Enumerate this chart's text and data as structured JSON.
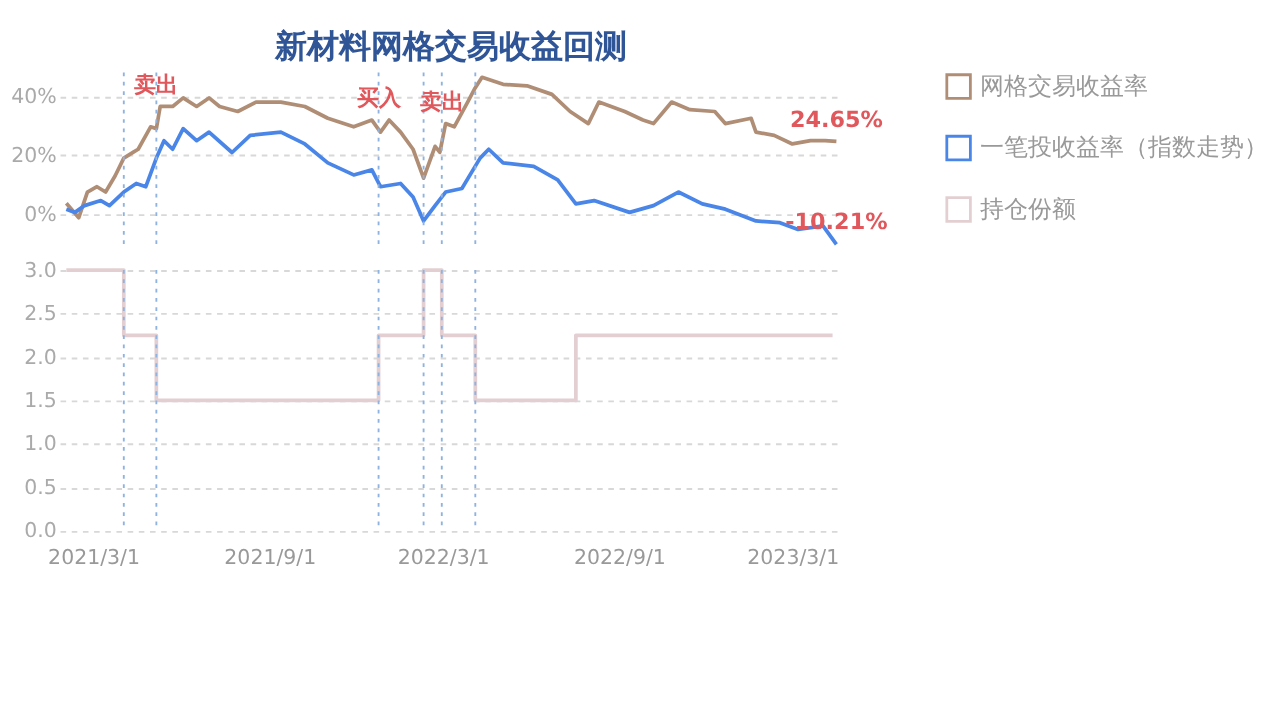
{
  "chart_data": [
    {
      "type": "line",
      "title": "新材料网格交易收益回测",
      "xlim": [
        "2021-01-25",
        "2023-04-22"
      ],
      "ylim": [
        -12,
        48
      ],
      "yticks": [
        {
          "value": 0,
          "label": "0%"
        },
        {
          "value": 20,
          "label": "20%"
        },
        {
          "value": 40,
          "label": "40%"
        }
      ],
      "grid": "y",
      "legend": "right",
      "tick_labels": "y",
      "series": [
        {
          "name": "网格交易收益率",
          "color": "#b08e76",
          "x": [
            "2021-02-01",
            "2021-02-14",
            "2021-02-23",
            "2021-03-05",
            "2021-03-14",
            "2021-03-24",
            "2021-04-02",
            "2021-04-12",
            "2021-04-17",
            "2021-04-30",
            "2021-05-06",
            "2021-05-10",
            "2021-05-23",
            "2021-06-03",
            "2021-06-17",
            "2021-06-30",
            "2021-07-11",
            "2021-07-30",
            "2021-08-18",
            "2021-09-13",
            "2021-10-08",
            "2021-11-01",
            "2021-11-28",
            "2021-12-17",
            "2021-12-26",
            "2022-01-04",
            "2022-01-16",
            "2022-01-29",
            "2022-02-09",
            "2022-02-21",
            "2022-02-26",
            "2022-03-04",
            "2022-03-13",
            "2022-03-27",
            "2022-04-03",
            "2022-04-11",
            "2022-05-03",
            "2022-05-28",
            "2022-06-23",
            "2022-07-12",
            "2022-07-31",
            "2022-08-11",
            "2022-09-07",
            "2022-09-26",
            "2022-10-07",
            "2022-10-26",
            "2022-11-14",
            "2022-12-10",
            "2022-12-21",
            "2023-01-17",
            "2023-01-22",
            "2023-02-10",
            "2023-03-01",
            "2023-03-20",
            "2023-04-04",
            "2023-04-16"
          ],
          "values": [
            3.7,
            -1.2,
            7.5,
            9.3,
            7.5,
            13,
            19,
            21,
            22,
            29.6,
            29,
            36.5,
            36.5,
            39.4,
            36.5,
            39.4,
            36.5,
            34.8,
            38,
            38,
            36.5,
            32.5,
            29.6,
            31.9,
            27.8,
            31.9,
            27.8,
            22,
            12.2,
            23,
            21,
            30.7,
            29.6,
            38,
            42.3,
            46.4,
            44,
            43.5,
            40.6,
            34.8,
            30.7,
            38,
            34.8,
            31.9,
            30.7,
            38,
            35.4,
            34.8,
            30.7,
            32.5,
            27.8,
            26.7,
            23.8,
            24.9,
            24.9,
            24.65
          ]
        },
        {
          "name": "一笔投收益率（指数走势）",
          "color": "#4a86e8",
          "x": [
            "2021-02-01",
            "2021-02-10",
            "2021-02-20",
            "2021-03-09",
            "2021-03-18",
            "2021-04-02",
            "2021-04-15",
            "2021-04-25",
            "2021-05-06",
            "2021-05-14",
            "2021-05-23",
            "2021-06-03",
            "2021-06-17",
            "2021-06-30",
            "2021-07-24",
            "2021-08-12",
            "2021-09-13",
            "2021-10-08",
            "2021-11-01",
            "2021-11-28",
            "2021-12-17",
            "2021-12-26",
            "2022-01-16",
            "2022-01-29",
            "2022-02-09",
            "2022-02-21",
            "2022-03-04",
            "2022-03-21",
            "2022-04-09",
            "2022-04-18",
            "2022-05-03",
            "2022-06-04",
            "2022-06-29",
            "2022-07-18",
            "2022-08-06",
            "2022-09-12",
            "2022-10-07",
            "2022-11-02",
            "2022-11-27",
            "2022-12-21",
            "2023-01-22",
            "2023-02-16",
            "2023-03-07",
            "2023-04-02",
            "2023-04-16"
          ],
          "values": [
            1.7,
            0.6,
            2.9,
            4.6,
            2.9,
            7.5,
            10.4,
            9.3,
            19,
            24.9,
            22,
            29,
            24.9,
            27.8,
            20.9,
            26.7,
            27.8,
            23.8,
            17.4,
            13.3,
            15,
            9.3,
            10.4,
            5.8,
            -2.3,
            2.9,
            7.5,
            8.7,
            19,
            22,
            17.4,
            16.2,
            11.6,
            3.5,
            4.6,
            0.6,
            2.9,
            7.5,
            3.5,
            1.7,
            -2.3,
            -2.9,
            -5.2,
            -4,
            -10.21
          ]
        }
      ],
      "ref_lines": [
        {
          "axis": "x",
          "value": "2021-04-02",
          "color": "#8fb3e0",
          "line_style": "dotted"
        },
        {
          "axis": "x",
          "value": "2021-05-06",
          "color": "#8fb3e0",
          "line_style": "dotted"
        },
        {
          "axis": "x",
          "value": "2021-12-24",
          "color": "#8fb3e0",
          "line_style": "dotted"
        },
        {
          "axis": "x",
          "value": "2022-02-09",
          "color": "#8fb3e0",
          "line_style": "dotted"
        },
        {
          "axis": "x",
          "value": "2022-02-28",
          "color": "#8fb3e0",
          "line_style": "dotted"
        },
        {
          "axis": "x",
          "value": "2022-04-04",
          "color": "#8fb3e0",
          "line_style": "dotted"
        }
      ],
      "annotations": [
        {
          "text": "卖出",
          "x": "2021-05-06",
          "y": 36.5
        },
        {
          "text": "买入",
          "x": "2021-12-24",
          "y": 31.9
        },
        {
          "text": "卖出",
          "x": "2022-02-28",
          "y": 30.7
        },
        {
          "text": "24.65%",
          "x": "2023-04-16",
          "y": 24.65
        },
        {
          "text": "-10.21%",
          "x": "2023-04-16",
          "y": -10.21
        }
      ]
    },
    {
      "type": "step",
      "xlim": [
        "2021-01-25",
        "2023-04-22"
      ],
      "ylim": [
        0,
        3
      ],
      "yticks": [
        {
          "value": 0,
          "label": "0.0"
        },
        {
          "value": 0.5,
          "label": "0.5"
        },
        {
          "value": 1,
          "label": "1.0"
        },
        {
          "value": 1.5,
          "label": "1.5"
        },
        {
          "value": 2,
          "label": "2.0"
        },
        {
          "value": 2.5,
          "label": "2.5"
        },
        {
          "value": 3,
          "label": "3.0"
        }
      ],
      "xticks": [
        {
          "value": "2021-03-01",
          "label": "2021/3/1"
        },
        {
          "value": "2021-09-01",
          "label": "2021/9/1"
        },
        {
          "value": "2022-03-01",
          "label": "2022/3/1"
        },
        {
          "value": "2022-09-01",
          "label": "2022/9/1"
        },
        {
          "value": "2023-03-01",
          "label": "2023/3/1"
        }
      ],
      "grid": "y",
      "legend": "right",
      "series": [
        {
          "name": "持仓份额",
          "color": "#e3cfd1",
          "x": [
            "2021-02-01",
            "2021-04-02",
            "2021-05-06",
            "2021-12-24",
            "2022-02-09",
            "2022-02-28",
            "2022-04-04",
            "2022-07-18",
            "2023-04-12"
          ],
          "values": [
            3,
            2.25,
            1.5,
            2.25,
            3,
            2.25,
            1.5,
            2.25,
            2.25
          ]
        }
      ],
      "ref_lines": [
        {
          "axis": "x",
          "value": "2021-04-02",
          "color": "#8fb3e0",
          "line_style": "dotted"
        },
        {
          "axis": "x",
          "value": "2021-05-06",
          "color": "#8fb3e0",
          "line_style": "dotted"
        },
        {
          "axis": "x",
          "value": "2021-12-24",
          "color": "#8fb3e0",
          "line_style": "dotted"
        },
        {
          "axis": "x",
          "value": "2022-02-09",
          "color": "#8fb3e0",
          "line_style": "dotted"
        },
        {
          "axis": "x",
          "value": "2022-02-28",
          "color": "#8fb3e0",
          "line_style": "dotted"
        },
        {
          "axis": "x",
          "value": "2022-04-04",
          "color": "#8fb3e0",
          "line_style": "dotted"
        }
      ]
    }
  ]
}
